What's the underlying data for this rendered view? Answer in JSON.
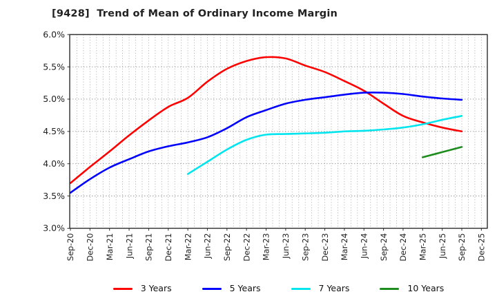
{
  "title": "[9428]  Trend of Mean of Ordinary Income Margin",
  "chart_data": {
    "type": "line",
    "title": "[9428]  Trend of Mean of Ordinary Income Margin",
    "x_categories": [
      "Sep-20",
      "Dec-20",
      "Mar-21",
      "Jun-21",
      "Sep-21",
      "Dec-21",
      "Mar-22",
      "Jun-22",
      "Sep-22",
      "Dec-22",
      "Mar-23",
      "Jun-23",
      "Sep-23",
      "Dec-23",
      "Mar-24",
      "Jun-24",
      "Sep-24",
      "Dec-24",
      "Mar-25",
      "Jun-25",
      "Sep-25",
      "Dec-25"
    ],
    "y_tick_labels": [
      "3.0%",
      "3.5%",
      "4.0%",
      "4.5%",
      "5.0%",
      "5.5%",
      "6.0%"
    ],
    "y_ticks": [
      3.0,
      3.5,
      4.0,
      4.5,
      5.0,
      5.5,
      6.0
    ],
    "ylim": [
      3.0,
      6.0
    ],
    "y_unit": "%",
    "grid": "dotted gray; horizontal every 0.5%, vertical monthly",
    "legend_position": "bottom-center",
    "series": [
      {
        "name": "3 Years",
        "color": "#ff0000",
        "start_index": 0,
        "values": [
          3.7,
          3.95,
          4.19,
          4.44,
          4.67,
          4.88,
          5.02,
          5.27,
          5.47,
          5.59,
          5.65,
          5.63,
          5.52,
          5.42,
          5.28,
          5.13,
          4.93,
          4.74,
          4.64,
          4.56,
          4.5
        ]
      },
      {
        "name": "5 Years",
        "color": "#0000ff",
        "start_index": 0,
        "values": [
          3.55,
          3.76,
          3.94,
          4.07,
          4.19,
          4.27,
          4.33,
          4.41,
          4.55,
          4.72,
          4.83,
          4.93,
          4.99,
          5.03,
          5.07,
          5.1,
          5.1,
          5.08,
          5.04,
          5.01,
          4.99
        ]
      },
      {
        "name": "7 Years",
        "color": "#00e5ee",
        "start_index": 6,
        "values": [
          3.84,
          4.03,
          4.22,
          4.37,
          4.45,
          4.46,
          4.47,
          4.48,
          4.5,
          4.51,
          4.53,
          4.56,
          4.61,
          4.68,
          4.74
        ]
      },
      {
        "name": "10 Years",
        "color": "#1c8c1c",
        "start_index": 18,
        "values": [
          4.1,
          4.18,
          4.26
        ]
      }
    ]
  },
  "legend": {
    "items": [
      {
        "label": "3 Years",
        "color": "#ff0000"
      },
      {
        "label": "5 Years",
        "color": "#0000ff"
      },
      {
        "label": "7 Years",
        "color": "#00e5ee"
      },
      {
        "label": "10 Years",
        "color": "#1c8c1c"
      }
    ]
  }
}
